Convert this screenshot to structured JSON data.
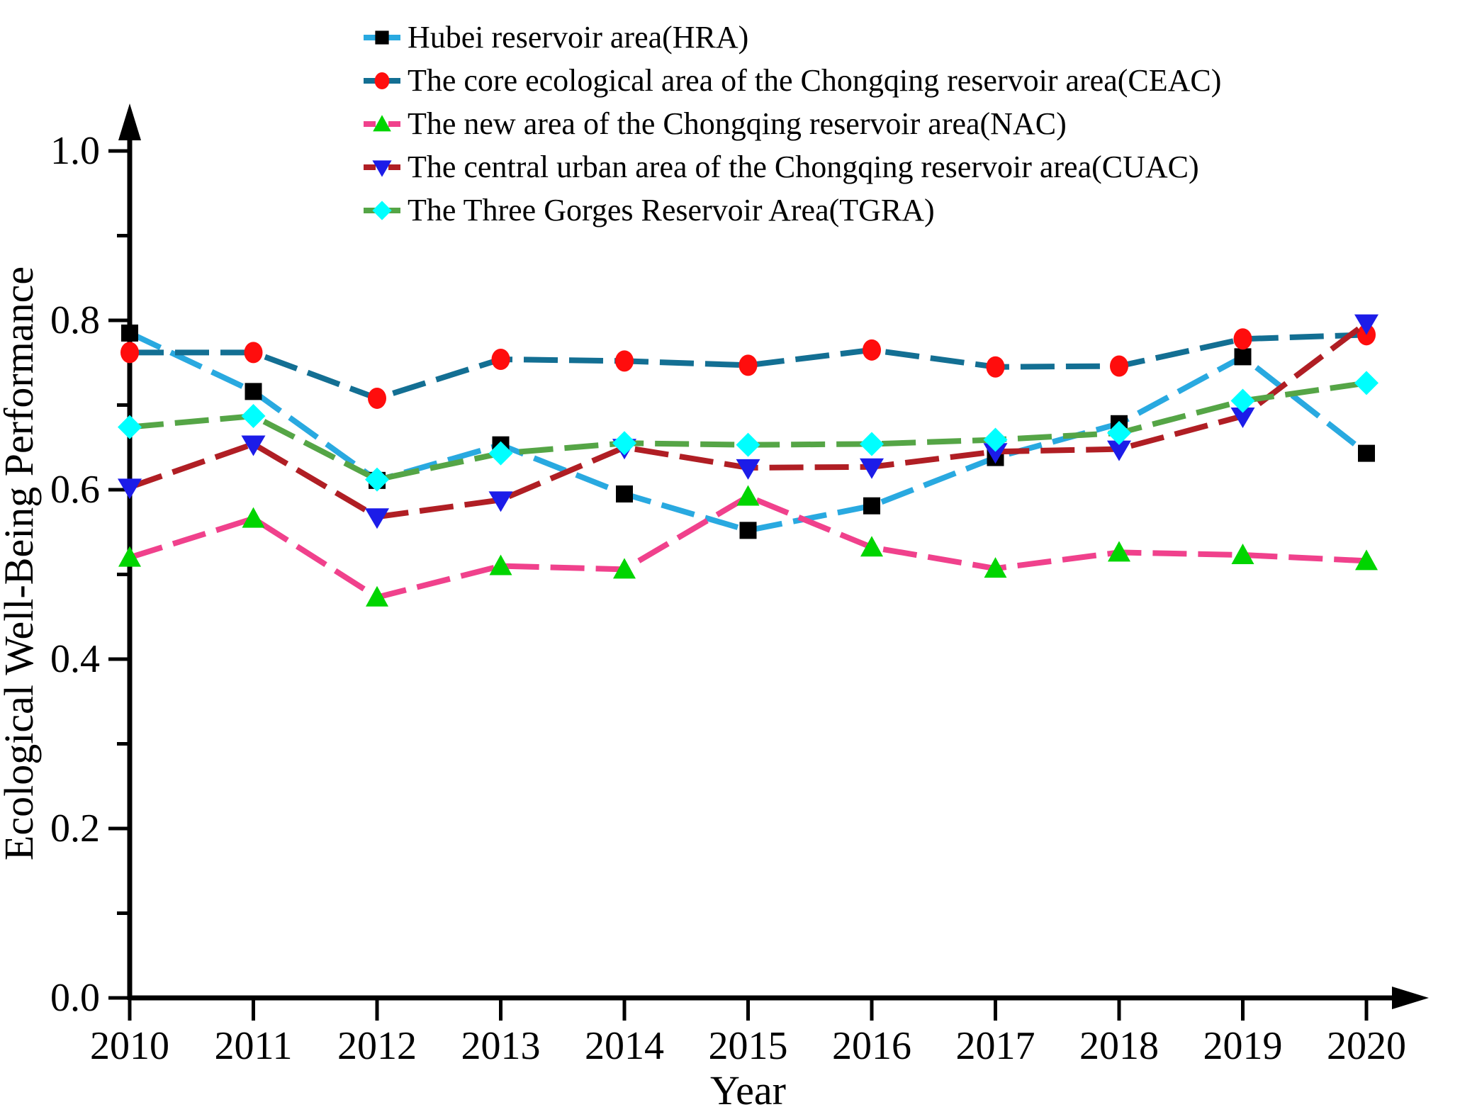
{
  "figure": {
    "background": "#ffffff",
    "axis_color": "#000000"
  },
  "chart_data": {
    "type": "line",
    "title": "",
    "xlabel": "Year",
    "ylabel": "Ecological Well-Being Performance",
    "categories": [
      "2010",
      "2011",
      "2012",
      "2013",
      "2014",
      "2015",
      "2016",
      "2017",
      "2018",
      "2019",
      "2020"
    ],
    "y_ticks": [
      "0.0",
      "0.2",
      "0.4",
      "0.6",
      "0.8",
      "1.0"
    ],
    "y_tick_values": [
      0.0,
      0.2,
      0.4,
      0.6,
      0.8,
      1.0
    ],
    "y_minor_tick_values": [
      0.1,
      0.3,
      0.5,
      0.7,
      0.9
    ],
    "ylim": [
      0.0,
      1.05
    ],
    "grid": false,
    "legend_position": "top",
    "line_style": "dashed",
    "series": [
      {
        "name": "Hubei reservoir area(HRA)",
        "line_color": "#29A9E0",
        "marker": "square",
        "marker_color": "#000000",
        "values": [
          0.785,
          0.716,
          0.611,
          0.653,
          0.595,
          0.552,
          0.581,
          0.638,
          0.678,
          0.757,
          0.643
        ]
      },
      {
        "name": "The core ecological area of the Chongqing reservoir area(CEAC)",
        "line_color": "#136F93",
        "marker": "circle",
        "marker_color": "#FF0D0D",
        "values": [
          0.762,
          0.762,
          0.708,
          0.754,
          0.752,
          0.747,
          0.765,
          0.745,
          0.746,
          0.778,
          0.783
        ]
      },
      {
        "name": "The new area of the Chongqing reservoir area(NAC)",
        "line_color": "#F0418C",
        "marker": "triangle-up",
        "marker_color": "#00D500",
        "values": [
          0.52,
          0.566,
          0.473,
          0.51,
          0.506,
          0.592,
          0.532,
          0.507,
          0.526,
          0.523,
          0.516
        ]
      },
      {
        "name": "The central urban area of the Chongqing reservoir area(CUAC)",
        "line_color": "#B01E24",
        "marker": "triangle-down",
        "marker_color": "#1C1CE8",
        "values": [
          0.603,
          0.654,
          0.568,
          0.588,
          0.65,
          0.626,
          0.627,
          0.645,
          0.648,
          0.687,
          0.797
        ]
      },
      {
        "name": "The Three Gorges Reservoir Area(TGRA)",
        "line_color": "#55A546",
        "marker": "diamond",
        "marker_color": "#00FFFF",
        "values": [
          0.674,
          0.687,
          0.612,
          0.643,
          0.655,
          0.653,
          0.654,
          0.659,
          0.667,
          0.705,
          0.726
        ]
      }
    ]
  }
}
